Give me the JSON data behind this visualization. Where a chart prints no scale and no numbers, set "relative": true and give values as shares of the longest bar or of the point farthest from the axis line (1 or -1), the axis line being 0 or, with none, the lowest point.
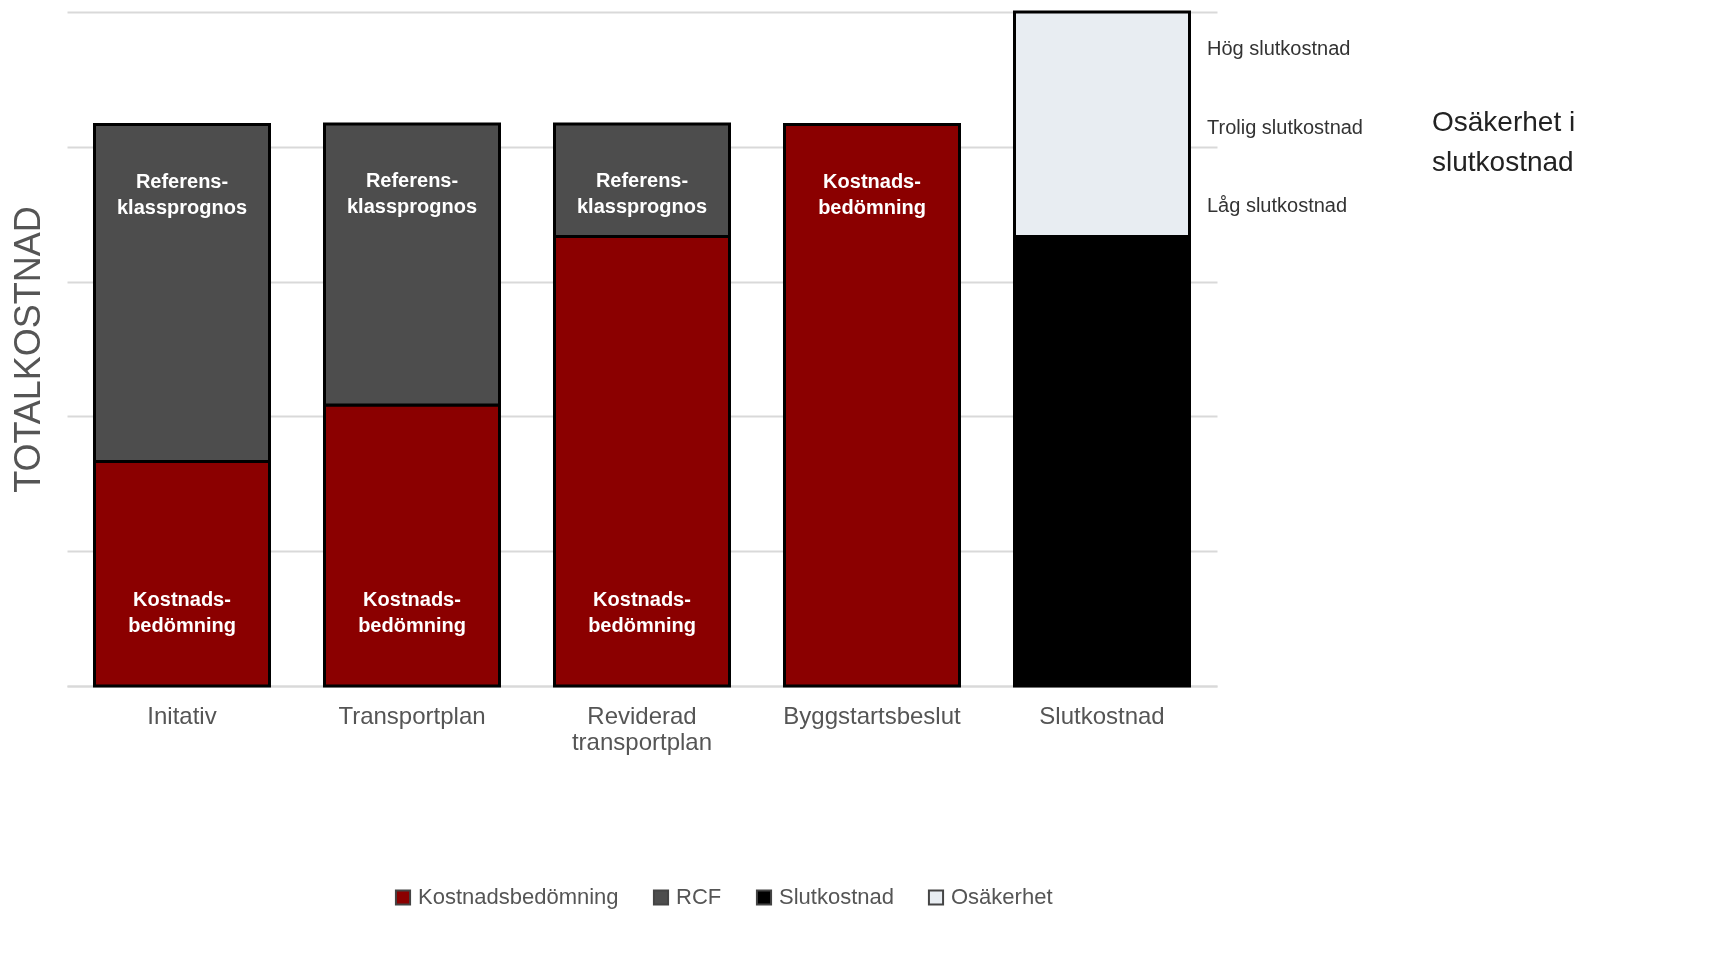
{
  "chart_data": {
    "type": "bar",
    "stacked": true,
    "relative": true,
    "ylabel": "TOTALKOSTNAD",
    "categories": [
      "Initativ",
      "Transportplan",
      "Reviderad transportplan",
      "Byggstartsbeslut",
      "Slutkostnad"
    ],
    "series": [
      {
        "name": "Kostnadsbedömning",
        "color": "#8b0000",
        "values": [
          0.333,
          0.417,
          0.667,
          0.833,
          null
        ]
      },
      {
        "name": "RCF",
        "color": "#4d4d4d",
        "values": [
          0.5,
          0.417,
          0.167,
          null,
          null
        ]
      },
      {
        "name": "Slutkostnad",
        "color": "#000000",
        "values": [
          null,
          null,
          null,
          null,
          0.667
        ]
      },
      {
        "name": "Osäkerhet",
        "color": "#e8edf2",
        "values": [
          null,
          null,
          null,
          null,
          0.333
        ]
      }
    ],
    "annotations": [
      "Referens-\nklassprognos",
      "Referens-\nklassprognos",
      "Referens-\nklassprognos",
      "Kostnads-\nbedömning",
      "Kostnads-\nbedömning",
      "Kostnads-\nbedömning",
      "Kostnads-\nbedömning",
      "Hög slutkostnad",
      "Trolig slutkostnad",
      "Låg slutkostnad",
      "Osäkerhet i\nslutkostnad"
    ],
    "grid": true,
    "legend": "bottom"
  }
}
